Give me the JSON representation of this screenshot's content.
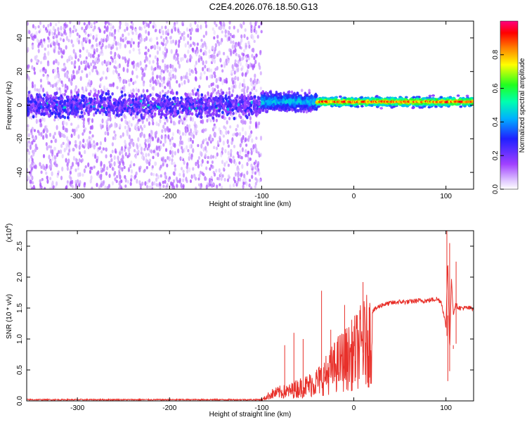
{
  "figure": {
    "title": "C2E4.2026.076.18.50.G13"
  },
  "chart_data": [
    {
      "type": "heatmap",
      "title": "",
      "xlabel": "Height of straight line (km)",
      "ylabel": "Frequency (Hz)",
      "xlim": [
        -355,
        130
      ],
      "ylim": [
        -50,
        50
      ],
      "x_ticks": [
        -300,
        -200,
        -100,
        0,
        100
      ],
      "y_ticks": [
        -40,
        -20,
        0,
        20,
        40
      ],
      "colorbar": {
        "label": "Normalized spectral amplitude",
        "range": [
          0,
          1
        ],
        "ticks": [
          "0.0",
          "0.2",
          "0.4",
          "0.6",
          "0.8"
        ],
        "tick_values": [
          0,
          0.2,
          0.4,
          0.6,
          0.8
        ],
        "colormap": [
          "#ffffff",
          "#a040ff",
          "#2020ff",
          "#00e0ff",
          "#00ff40",
          "#ffff00",
          "#ff8000",
          "#ff0000",
          "#ff0080"
        ]
      },
      "regions": [
        {
          "x_range": [
            -355,
            -100
          ],
          "freq_center": 0,
          "freq_halfwidth": 8,
          "amplitude": 0.2,
          "noise": "scattered over full band"
        },
        {
          "x_range": [
            -100,
            -40
          ],
          "freq_center": 2,
          "freq_halfwidth": 6,
          "amplitude": 0.45
        },
        {
          "x_range": [
            -40,
            130
          ],
          "freq_center": 2,
          "freq_halfwidth": 3,
          "amplitude": 0.8
        }
      ]
    },
    {
      "type": "line",
      "title": "",
      "xlabel": "Height of straight line (km)",
      "ylabel": "SNR (10 * v/v)",
      "y_multiplier": "(x10",
      "y_multiplier_exp": "4",
      "y_multiplier_close": ")",
      "xlim": [
        -355,
        130
      ],
      "ylim": [
        0,
        2.75
      ],
      "x_ticks": [
        -300,
        -200,
        -100,
        0,
        100
      ],
      "y_ticks": [
        "0.0",
        "0.5",
        "1.0",
        "1.5",
        "2.0",
        "2.5"
      ],
      "y_tick_values": [
        0,
        0.5,
        1.0,
        1.5,
        2.0,
        2.5
      ],
      "line_color": "#e8302a",
      "series": [
        {
          "x": [
            -355,
            -300,
            -200,
            -100,
            -90,
            -80,
            -70,
            -60,
            -50,
            -40,
            -35,
            -30,
            -25,
            -20,
            -15,
            -10,
            -5,
            0,
            5,
            10,
            15,
            20,
            30,
            40,
            50,
            60,
            70,
            80,
            90,
            95,
            100,
            102,
            104,
            106,
            108,
            110,
            115,
            120,
            130
          ],
          "y": [
            0.02,
            0.02,
            0.02,
            0.02,
            0.15,
            0.2,
            0.22,
            0.3,
            0.35,
            0.45,
            0.5,
            0.6,
            0.7,
            0.8,
            0.9,
            0.95,
            1.0,
            1.1,
            1.2,
            1.3,
            1.4,
            1.45,
            1.55,
            1.58,
            1.6,
            1.6,
            1.62,
            1.62,
            1.65,
            1.6,
            1.2,
            2.3,
            0.8,
            2.0,
            1.4,
            1.55,
            1.5,
            1.5,
            1.5
          ]
        }
      ],
      "spikes": [
        {
          "x": -75,
          "y": 0.9
        },
        {
          "x": -65,
          "y": 1.1
        },
        {
          "x": -55,
          "y": 1.0
        },
        {
          "x": -35,
          "y": 1.78
        },
        {
          "x": -25,
          "y": 1.15
        },
        {
          "x": -10,
          "y": 1.55
        },
        {
          "x": 10,
          "y": 1.92
        },
        {
          "x": 101,
          "y": 2.78
        },
        {
          "x": 102,
          "y": 0.32
        },
        {
          "x": 104,
          "y": 2.55
        },
        {
          "x": 108,
          "y": 0.9
        },
        {
          "x": 111,
          "y": 2.25
        }
      ]
    }
  ]
}
